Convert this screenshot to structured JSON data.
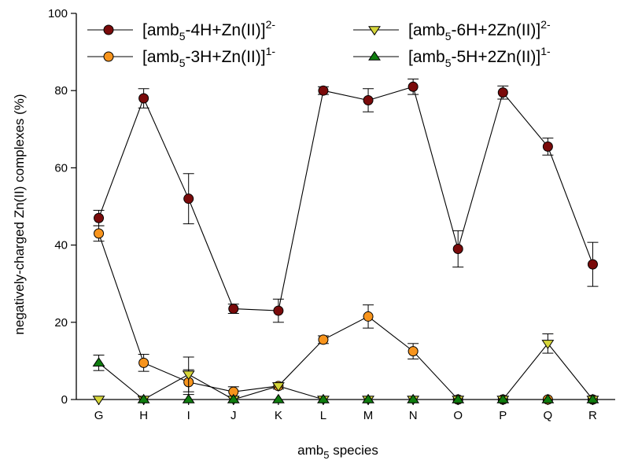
{
  "chart_data": {
    "type": "scatter",
    "xlabel_main": "amb",
    "xlabel_sub": "5",
    "xlabel_rest": " species",
    "ylabel": "negatively-charged Zn(II) complexes (%)",
    "categories": [
      "G",
      "H",
      "I",
      "J",
      "K",
      "L",
      "M",
      "N",
      "O",
      "P",
      "Q",
      "R"
    ],
    "ylim": [
      0,
      100
    ],
    "yticks": [
      "0",
      "20",
      "40",
      "60",
      "80",
      "100"
    ],
    "grid": false,
    "legend_placement": "top",
    "series": [
      {
        "name_parts": [
          "[amb",
          "5",
          "-4H+Zn(II)]",
          "2-"
        ],
        "marker": "circle",
        "color": "#7a0a0a",
        "values": [
          47,
          78,
          52,
          23.5,
          23,
          80,
          77.5,
          81,
          39,
          79.5,
          65.5,
          35
        ],
        "errors": [
          2,
          2.5,
          6.5,
          1.2,
          3,
          1,
          3,
          2,
          4.7,
          1.7,
          2.2,
          5.7
        ]
      },
      {
        "name_parts": [
          "[amb",
          "5",
          "-3H+Zn(II)]",
          "1-"
        ],
        "marker": "circle",
        "color": "#f7941d",
        "values": [
          43,
          9.5,
          4.5,
          2,
          3.5,
          15.5,
          21.5,
          12.5,
          0,
          0,
          0,
          0
        ],
        "errors": [
          2,
          2.2,
          3.2,
          1.3,
          0.8,
          1,
          3,
          2,
          0,
          0,
          0,
          0
        ]
      },
      {
        "name_parts": [
          "[amb",
          "5",
          "-6H+2Zn(II)]",
          "2-"
        ],
        "marker": "triangle-down",
        "color": "#d6d63a",
        "values": [
          0,
          0,
          6.5,
          0,
          3.5,
          0,
          0,
          0,
          0,
          0,
          14.5,
          0
        ],
        "errors": [
          0,
          0,
          4.5,
          0,
          0.5,
          0,
          0,
          0,
          0,
          0,
          2.5,
          0
        ]
      },
      {
        "name_parts": [
          "[amb",
          "5",
          "-5H+2Zn(II)]",
          "1-"
        ],
        "marker": "triangle-up",
        "color": "#0f7d0f",
        "values": [
          9.5,
          0,
          0,
          0,
          0,
          0,
          0,
          0,
          0,
          0,
          0,
          0
        ],
        "errors": [
          2,
          0,
          0,
          0,
          0,
          0,
          0,
          0,
          0,
          0,
          0,
          0
        ]
      }
    ]
  }
}
